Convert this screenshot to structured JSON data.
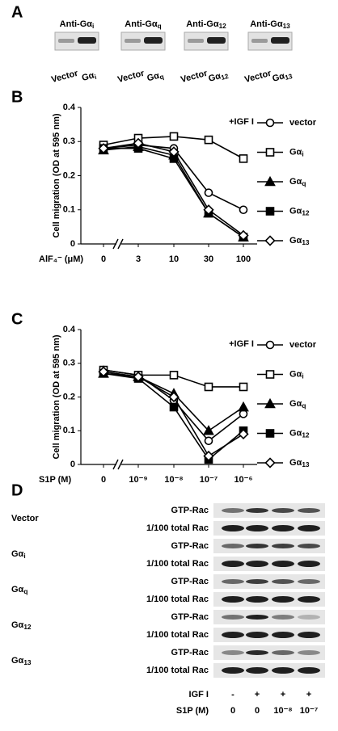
{
  "panels": {
    "A": {
      "label": "A",
      "blots": [
        {
          "antibody": "Anti-Gαi",
          "lanes": [
            "Vector",
            "Gαi"
          ]
        },
        {
          "antibody": "Anti-Gαq",
          "lanes": [
            "Vector",
            "Gαq"
          ]
        },
        {
          "antibody": "Anti-Gα12",
          "lanes": [
            "Vector",
            "Gα12"
          ]
        },
        {
          "antibody": "Anti-Gα13",
          "lanes": [
            "Vector",
            "Gα13"
          ]
        }
      ]
    },
    "D": {
      "label": "D",
      "groups": [
        "Vector",
        "Gαi",
        "Gαq",
        "Gα12",
        "Gα13"
      ],
      "rows": [
        "GTP-Rac",
        "1/100 total Rac"
      ],
      "conditions": [
        {
          "name": "IGF I",
          "lanes": [
            "-",
            "+",
            "+",
            "+"
          ]
        },
        {
          "name": "S1P  (M)",
          "lanes": [
            "0",
            "0",
            "10⁻⁸",
            "10⁻⁷"
          ]
        }
      ]
    }
  },
  "chart_data": [
    {
      "type": "line",
      "panel_label": "B",
      "annotation": "+IGF I",
      "y_label": "Cell migration (OD at 595 nm)",
      "x_label": "AlF₄⁻ (μM)",
      "categories": [
        "0",
        "3",
        "10",
        "30",
        "100"
      ],
      "axis_break": true,
      "ylim": [
        0,
        0.4
      ],
      "yticks": [
        0,
        0.1,
        0.2,
        0.3,
        0.4
      ],
      "series": [
        {
          "name": "vector",
          "color": "#000000",
          "marker": "open-circle",
          "values": [
            0.28,
            0.29,
            0.28,
            0.15,
            0.1
          ]
        },
        {
          "name": "Gαi",
          "color": "#000000",
          "marker": "open-square",
          "values": [
            0.29,
            0.31,
            0.315,
            0.305,
            0.25
          ]
        },
        {
          "name": "Gαq",
          "color": "#000000",
          "marker": "filled-triangle",
          "values": [
            0.275,
            0.285,
            0.26,
            0.09,
            0.02
          ]
        },
        {
          "name": "Gα12",
          "color": "#000000",
          "marker": "filled-square",
          "values": [
            0.28,
            0.28,
            0.25,
            0.09,
            0.02
          ]
        },
        {
          "name": "Gα13",
          "color": "#000000",
          "marker": "open-diamond",
          "values": [
            0.28,
            0.295,
            0.27,
            0.1,
            0.025
          ]
        }
      ]
    },
    {
      "type": "line",
      "panel_label": "C",
      "annotation": "+IGF I",
      "y_label": "Cell migration (OD at 595 nm)",
      "x_label": "S1P  (M)",
      "categories": [
        "0",
        "10⁻⁹",
        "10⁻⁸",
        "10⁻⁷",
        "10⁻⁶"
      ],
      "axis_break": true,
      "ylim": [
        0,
        0.4
      ],
      "yticks": [
        0,
        0.1,
        0.2,
        0.3,
        0.4
      ],
      "series": [
        {
          "name": "vector",
          "color": "#000000",
          "marker": "open-circle",
          "values": [
            0.28,
            0.265,
            0.19,
            0.07,
            0.15
          ]
        },
        {
          "name": "Gαi",
          "color": "#000000",
          "marker": "open-square",
          "values": [
            0.28,
            0.265,
            0.265,
            0.23,
            0.23
          ]
        },
        {
          "name": "Gαq",
          "color": "#000000",
          "marker": "filled-triangle",
          "values": [
            0.27,
            0.26,
            0.21,
            0.1,
            0.17
          ]
        },
        {
          "name": "Gα12",
          "color": "#000000",
          "marker": "filled-square",
          "values": [
            0.27,
            0.255,
            0.17,
            0.015,
            0.1
          ]
        },
        {
          "name": "Gα13",
          "color": "#000000",
          "marker": "open-diamond",
          "values": [
            0.275,
            0.26,
            0.2,
            0.025,
            0.09
          ]
        }
      ]
    }
  ]
}
